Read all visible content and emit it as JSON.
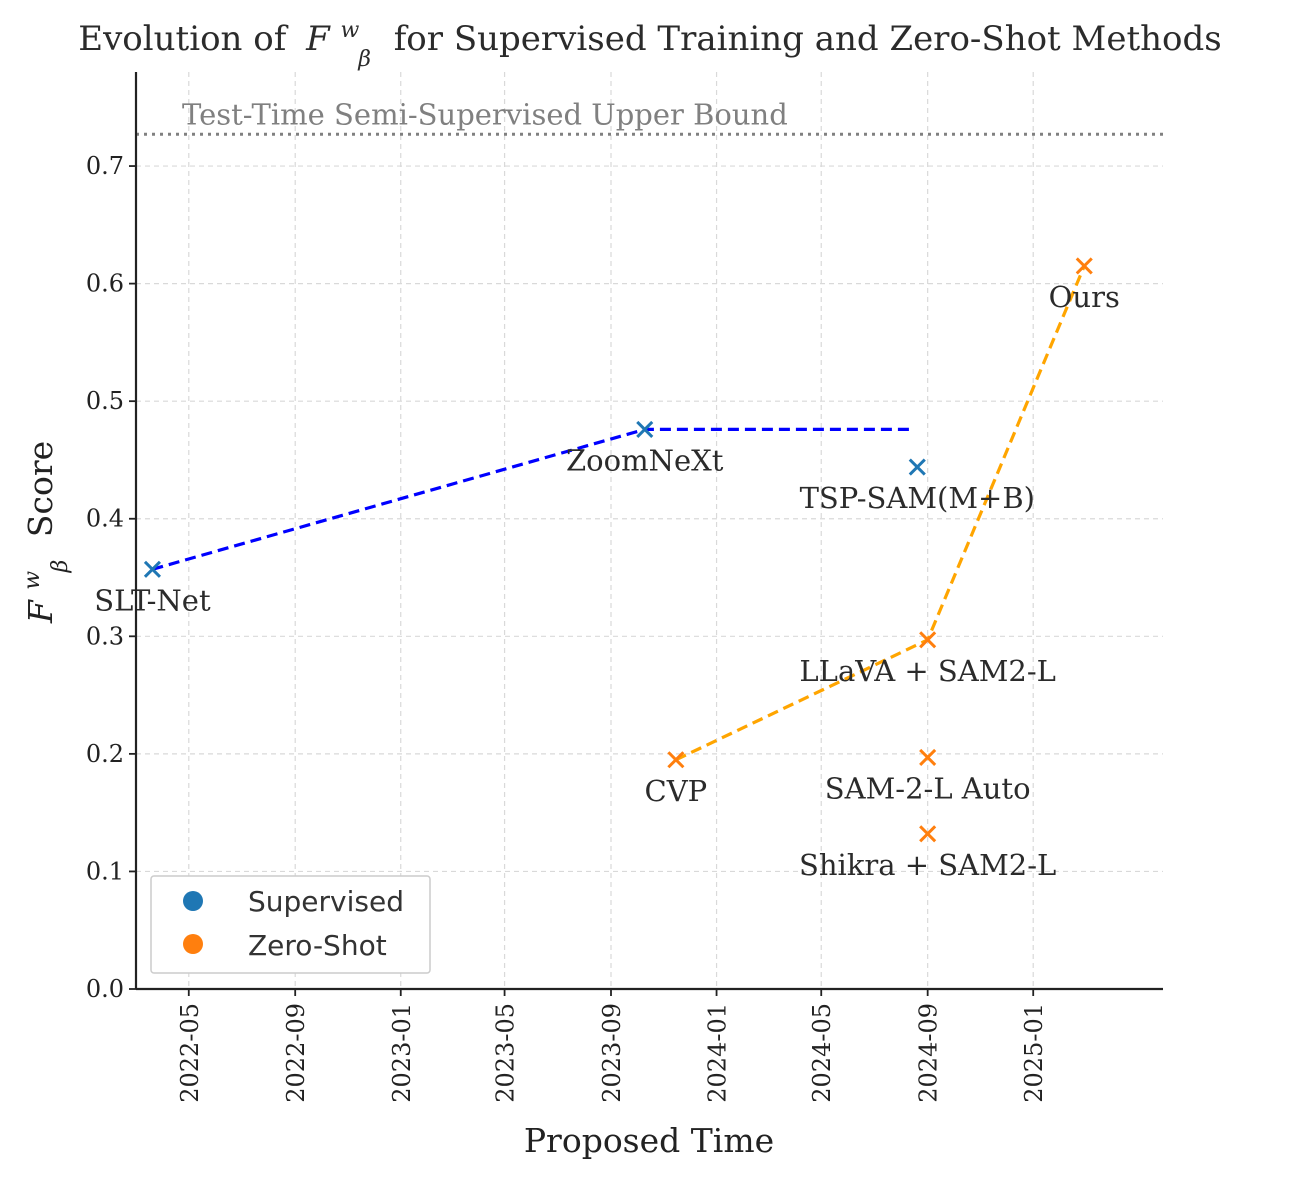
{
  "chart_data": {
    "type": "scatter",
    "title": "Evolution of",
    "title_symbol": "F",
    "title_sup": "w",
    "title_sub": "β",
    "title_rest": "for Supervised Training and Zero-Shot Methods",
    "xlabel": "Proposed Time",
    "ylabel_symbol": "F",
    "ylabel_sup": "w",
    "ylabel_sub": "β",
    "ylabel_rest": "Score",
    "xlim": [
      "2022-03-01",
      "2025-05-31"
    ],
    "ylim": [
      0,
      0.78
    ],
    "x_ticks": [
      "2022-05",
      "2022-09",
      "2023-01",
      "2023-05",
      "2023-09",
      "2024-01",
      "2024-05",
      "2024-09",
      "2025-01"
    ],
    "y_ticks": [
      "0.0",
      "0.1",
      "0.2",
      "0.3",
      "0.4",
      "0.5",
      "0.6",
      "0.7"
    ],
    "grid": true,
    "legend_position": "lower-left",
    "reference_line": {
      "label": "Test-Time Semi-Supervised Upper Bound",
      "y": 0.727,
      "color": "#808080"
    },
    "series": [
      {
        "name": "Supervised",
        "color": "#1f77b4",
        "trend_color": "#0000ff",
        "points": [
          {
            "label": "SLT-Net",
            "x": "2022-03-20",
            "y": 0.357
          },
          {
            "label": "ZoomNeXt",
            "x": "2023-10-10",
            "y": 0.476
          },
          {
            "label": "TSP-SAM(M+B)",
            "x": "2024-08-20",
            "y": 0.444
          }
        ],
        "trend": [
          {
            "x": "2022-03-20",
            "y": 0.357
          },
          {
            "x": "2023-10-10",
            "y": 0.476
          },
          {
            "x": "2024-08-15",
            "y": 0.476
          }
        ]
      },
      {
        "name": "Zero-Shot",
        "color": "#ff7f0e",
        "trend_color": "#ffa500",
        "points": [
          {
            "label": "CVP",
            "x": "2023-11-15",
            "y": 0.195
          },
          {
            "label": "LLaVA + SAM2-L",
            "x": "2024-09-01",
            "y": 0.297
          },
          {
            "label": "SAM-2-L Auto",
            "x": "2024-09-01",
            "y": 0.197
          },
          {
            "label": "Shikra + SAM2-L",
            "x": "2024-09-01",
            "y": 0.132
          },
          {
            "label": "Ours",
            "x": "2025-03-01",
            "y": 0.615
          }
        ],
        "trend": [
          {
            "x": "2023-11-15",
            "y": 0.195
          },
          {
            "x": "2024-09-01",
            "y": 0.297
          },
          {
            "x": "2025-03-01",
            "y": 0.615
          }
        ]
      }
    ]
  }
}
